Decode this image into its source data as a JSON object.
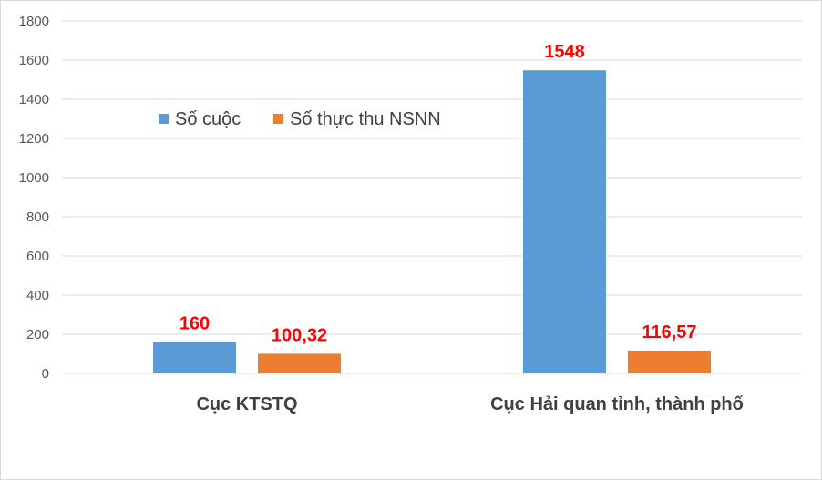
{
  "chart_data": {
    "type": "bar",
    "categories": [
      "Cục KTSTQ",
      "Cục Hải quan tỉnh, thành phố"
    ],
    "series": [
      {
        "name": "Số cuộc",
        "values": [
          160,
          1548
        ],
        "labels": [
          "160",
          "1548"
        ],
        "color": "#5b9bd5"
      },
      {
        "name": "Số thực thu NSNN",
        "values": [
          100.32,
          116.57
        ],
        "labels": [
          "100,32",
          "116,57"
        ],
        "color": "#ed7d31"
      }
    ],
    "ylim": [
      0,
      1800
    ],
    "yticks": [
      "0",
      "200",
      "400",
      "600",
      "800",
      "1000",
      "1200",
      "1400",
      "1600",
      "1800"
    ],
    "title": "",
    "xlabel": "",
    "ylabel": "",
    "grid": true,
    "legend_position": "top-left-inside",
    "data_label_color": "#ff0000"
  }
}
